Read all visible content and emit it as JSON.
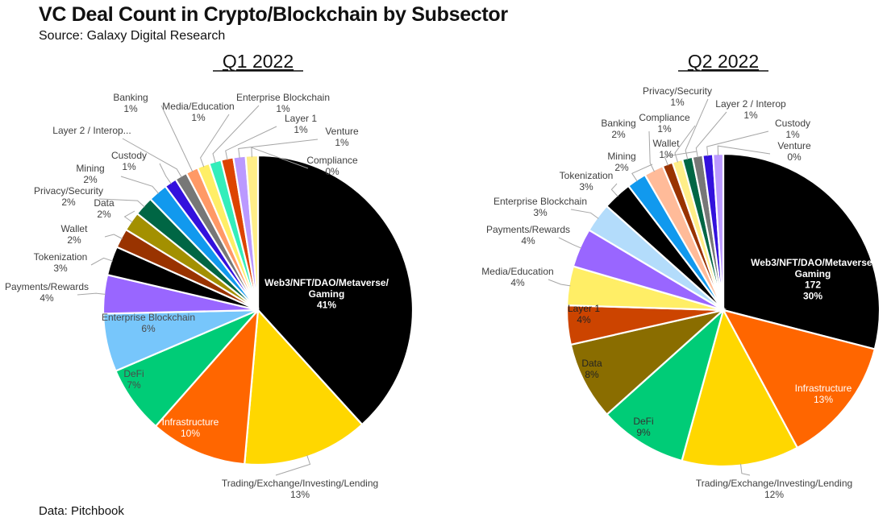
{
  "page": {
    "title": "VC Deal Count in Crypto/Blockchain by Subsector",
    "subtitle": "Source: Galaxy Digital Research",
    "footer": "Data: Pitchbook"
  },
  "chart_data": [
    {
      "type": "pie",
      "title": "Q1 2022",
      "slices": [
        {
          "label": "Web3/NFT/DAO/Metaverse/Gaming",
          "value": 41,
          "value_label": "41%",
          "color": "#000000"
        },
        {
          "label": "Trading/Exchange/Investing/Lending",
          "value": 13,
          "value_label": "13%",
          "color": "#ffd700"
        },
        {
          "label": "Infrastructure",
          "value": 10,
          "value_label": "10%",
          "color": "#ff6600"
        },
        {
          "label": "DeFi",
          "value": 7,
          "value_label": "7%",
          "color": "#00cc77"
        },
        {
          "label": "Enterprise Blockchain",
          "value": 6,
          "value_label": "6%",
          "color": "#77c6fb"
        },
        {
          "label": "Payments/Rewards",
          "value": 4,
          "value_label": "4%",
          "color": "#9966ff"
        },
        {
          "label": "Tokenization",
          "value": 3,
          "value_label": "3%",
          "color": "#000000"
        },
        {
          "label": "Wallet",
          "value": 2,
          "value_label": "2%",
          "color": "#993300"
        },
        {
          "label": "Data",
          "value": 2,
          "value_label": "2%",
          "color": "#a39000"
        },
        {
          "label": "Privacy/Security",
          "value": 2,
          "value_label": "2%",
          "color": "#006644"
        },
        {
          "label": "Mining",
          "value": 2,
          "value_label": "2%",
          "color": "#1199ee"
        },
        {
          "label": "Custody",
          "value": 1,
          "value_label": "1%",
          "color": "#3311dd"
        },
        {
          "label": "Layer 2 / Interop...",
          "value": 1,
          "value_label": "",
          "color": "#777777"
        },
        {
          "label": "Banking",
          "value": 1,
          "value_label": "1%",
          "color": "#ff9966"
        },
        {
          "label": "Media/Education",
          "value": 1,
          "value_label": "1%",
          "color": "#ffee66"
        },
        {
          "label": "Enterprise Blockchain",
          "value": 1,
          "value_label": "1%",
          "color": "#33eebb"
        },
        {
          "label": "Layer 1",
          "value": 1,
          "value_label": "1%",
          "color": "#dd4400"
        },
        {
          "label": "Venture",
          "value": 1,
          "value_label": "1%",
          "color": "#bb99ff"
        },
        {
          "label": "Compliance",
          "value": 0,
          "value_label": "0%",
          "color": "#ffee88"
        }
      ]
    },
    {
      "type": "pie",
      "title": "Q2 2022",
      "slices": [
        {
          "label": "Web3/NFT/DAO/Metaverse/Gaming",
          "value": 30,
          "value_label": "172\n30%",
          "color": "#000000"
        },
        {
          "label": "Infrastructure",
          "value": 13,
          "value_label": "13%",
          "color": "#ff6600"
        },
        {
          "label": "Trading/Exchange/Investing/Lending",
          "value": 12,
          "value_label": "12%",
          "color": "#ffd700"
        },
        {
          "label": "DeFi",
          "value": 9,
          "value_label": "9%",
          "color": "#00cc77"
        },
        {
          "label": "Data",
          "value": 8,
          "value_label": "8%",
          "color": "#8a6d00"
        },
        {
          "label": "Layer 1",
          "value": 4,
          "value_label": "4%",
          "color": "#cc4400"
        },
        {
          "label": "Media/Education",
          "value": 4,
          "value_label": "4%",
          "color": "#ffee66"
        },
        {
          "label": "Payments/Rewards",
          "value": 4,
          "value_label": "4%",
          "color": "#9966ff"
        },
        {
          "label": "Enterprise Blockchain",
          "value": 3,
          "value_label": "3%",
          "color": "#b3dcfb"
        },
        {
          "label": "Tokenization",
          "value": 3,
          "value_label": "3%",
          "color": "#000000"
        },
        {
          "label": "Mining",
          "value": 2,
          "value_label": "2%",
          "color": "#1199ee"
        },
        {
          "label": "Banking",
          "value": 2,
          "value_label": "2%",
          "color": "#ffbb99"
        },
        {
          "label": "Wallet",
          "value": 1,
          "value_label": "1%",
          "color": "#993300"
        },
        {
          "label": "Compliance",
          "value": 1,
          "value_label": "1%",
          "color": "#ffee88"
        },
        {
          "label": "Privacy/Security",
          "value": 1,
          "value_label": "1%",
          "color": "#006644"
        },
        {
          "label": "Layer 2 / Interop",
          "value": 1,
          "value_label": "1%",
          "color": "#777777"
        },
        {
          "label": "Custody",
          "value": 1,
          "value_label": "1%",
          "color": "#3311dd"
        },
        {
          "label": "Venture",
          "value": 0,
          "value_label": "0%",
          "color": "#bb99ff"
        }
      ]
    }
  ]
}
